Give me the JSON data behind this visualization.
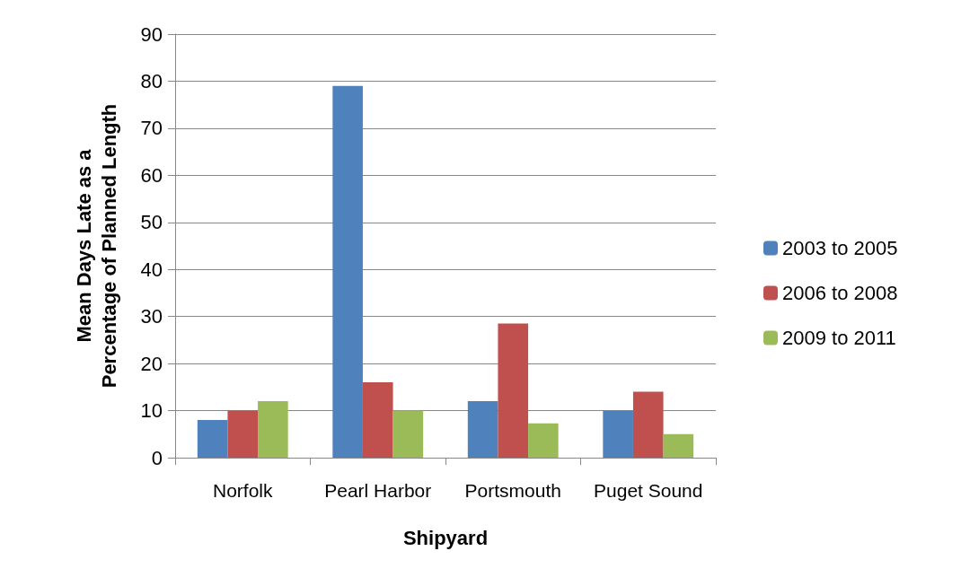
{
  "chart_data": {
    "type": "bar",
    "xlabel": "Shipyard",
    "ylabel": "Mean Days Late as a Percentage of Planned Length",
    "categories": [
      "Norfolk",
      "Pearl Harbor",
      "Portsmouth",
      "Puget Sound"
    ],
    "series": [
      {
        "name": "2003 to 2005",
        "color": "#4f81bd",
        "values": [
          8,
          79,
          12,
          10
        ]
      },
      {
        "name": "2006 to 2008",
        "color": "#c0504d",
        "values": [
          10,
          16,
          28.5,
          14
        ]
      },
      {
        "name": "2009 to 2011",
        "color": "#9bbb59",
        "values": [
          12,
          10,
          7.3,
          5
        ]
      }
    ],
    "ylim": [
      0,
      90
    ],
    "yticks": [
      0,
      10,
      20,
      30,
      40,
      50,
      60,
      70,
      80,
      90
    ],
    "grid": "y",
    "legend": "right"
  }
}
